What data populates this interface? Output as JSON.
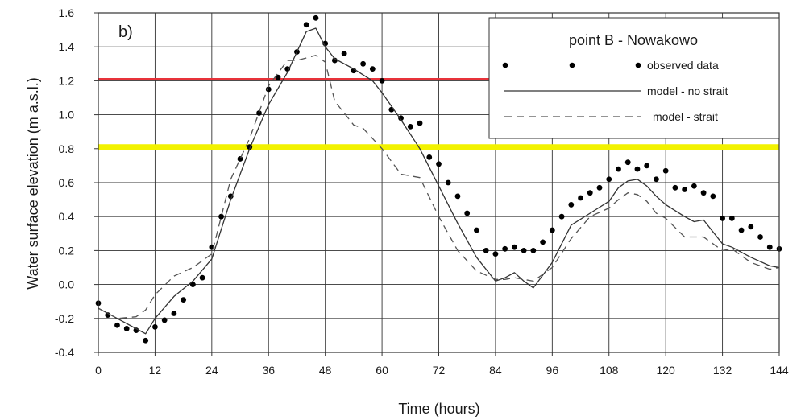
{
  "chart_data": {
    "type": "line",
    "panel_label": "b)",
    "title": "point B - Nowakowo",
    "xlabel": "Time (hours)",
    "ylabel": "Water surface elevation (m a.s.l.)",
    "xlim": [
      0,
      144
    ],
    "ylim": [
      -0.4,
      1.6
    ],
    "xticks": [
      0,
      12,
      24,
      36,
      48,
      60,
      72,
      84,
      96,
      108,
      120,
      132,
      144
    ],
    "yticks": [
      -0.4,
      -0.2,
      0.0,
      0.2,
      0.4,
      0.6,
      0.8,
      1.0,
      1.2,
      1.4,
      1.6
    ],
    "ytick_labels": [
      "-0.4",
      "-0.2",
      "0.0",
      "0.2",
      "0.4",
      "0.6",
      "0.8",
      "1.0",
      "1.2",
      "1.4",
      "1.6"
    ],
    "grid": true,
    "legend_placement": "top-right",
    "reference_lines": [
      {
        "y": 1.21,
        "color": "#e8333a"
      },
      {
        "y": 0.81,
        "color": "#f2f200"
      }
    ],
    "series": [
      {
        "name": "observed data",
        "style": "points",
        "color": "#000000",
        "x": [
          0,
          2,
          4,
          6,
          8,
          10,
          12,
          14,
          16,
          18,
          20,
          22,
          24,
          26,
          28,
          30,
          32,
          34,
          36,
          38,
          40,
          42,
          44,
          46,
          48,
          50,
          52,
          54,
          56,
          58,
          60,
          62,
          64,
          66,
          68,
          70,
          72,
          74,
          76,
          78,
          80,
          82,
          84,
          86,
          88,
          90,
          92,
          94,
          96,
          98,
          100,
          102,
          104,
          106,
          108,
          110,
          112,
          114,
          116,
          118,
          120,
          122,
          124,
          126,
          128,
          130,
          132,
          134,
          136,
          138,
          140,
          142,
          144
        ],
        "y": [
          -0.11,
          -0.18,
          -0.24,
          -0.26,
          -0.27,
          -0.33,
          -0.25,
          -0.21,
          -0.17,
          -0.09,
          0.0,
          0.04,
          0.22,
          0.4,
          0.52,
          0.74,
          0.81,
          1.01,
          1.15,
          1.22,
          1.27,
          1.37,
          1.53,
          1.57,
          1.42,
          1.32,
          1.36,
          1.26,
          1.3,
          1.27,
          1.2,
          1.03,
          0.98,
          0.93,
          0.95,
          0.75,
          0.71,
          0.6,
          0.52,
          0.42,
          0.32,
          0.2,
          0.18,
          0.21,
          0.22,
          0.2,
          0.2,
          0.25,
          0.32,
          0.4,
          0.47,
          0.51,
          0.54,
          0.57,
          0.62,
          0.68,
          0.72,
          0.68,
          0.7,
          0.62,
          0.67,
          0.57,
          0.56,
          0.58,
          0.54,
          0.52,
          0.39,
          0.39,
          0.32,
          0.34,
          0.28,
          0.22,
          0.21
        ]
      },
      {
        "name": "model - no strait",
        "style": "solid",
        "color": "#333333",
        "x": [
          0,
          4,
          8,
          10,
          12,
          16,
          20,
          24,
          28,
          32,
          36,
          40,
          44,
          46,
          48,
          50,
          54,
          58,
          60,
          64,
          68,
          72,
          76,
          80,
          84,
          86,
          88,
          90,
          92,
          96,
          100,
          104,
          108,
          110,
          112,
          114,
          116,
          118,
          120,
          124,
          126,
          128,
          132,
          134,
          138,
          142,
          144
        ],
        "y": [
          -0.14,
          -0.2,
          -0.26,
          -0.29,
          -0.2,
          -0.07,
          0.02,
          0.15,
          0.5,
          0.8,
          1.06,
          1.25,
          1.49,
          1.51,
          1.4,
          1.33,
          1.27,
          1.2,
          1.13,
          0.97,
          0.8,
          0.58,
          0.36,
          0.16,
          0.02,
          0.04,
          0.07,
          0.02,
          -0.02,
          0.13,
          0.35,
          0.42,
          0.49,
          0.57,
          0.61,
          0.62,
          0.58,
          0.52,
          0.47,
          0.4,
          0.37,
          0.38,
          0.24,
          0.22,
          0.16,
          0.11,
          0.1
        ]
      },
      {
        "name": "model - strait",
        "style": "dashed",
        "color": "#555555",
        "x": [
          0,
          4,
          8,
          10,
          12,
          16,
          20,
          24,
          28,
          32,
          36,
          40,
          42,
          46,
          48,
          50,
          54,
          56,
          60,
          64,
          68,
          72,
          76,
          80,
          84,
          86,
          88,
          90,
          92,
          96,
          100,
          104,
          108,
          110,
          112,
          114,
          116,
          118,
          120,
          124,
          128,
          132,
          134,
          138,
          142,
          144
        ],
        "y": [
          -0.14,
          -0.2,
          -0.19,
          -0.15,
          -0.06,
          0.05,
          0.1,
          0.18,
          0.62,
          0.86,
          1.17,
          1.32,
          1.32,
          1.35,
          1.31,
          1.08,
          0.94,
          0.92,
          0.8,
          0.65,
          0.63,
          0.4,
          0.2,
          0.08,
          0.03,
          0.03,
          0.04,
          0.03,
          0.02,
          0.1,
          0.27,
          0.4,
          0.45,
          0.5,
          0.54,
          0.53,
          0.49,
          0.42,
          0.39,
          0.28,
          0.28,
          0.2,
          0.21,
          0.13,
          0.09,
          0.1
        ]
      }
    ]
  }
}
